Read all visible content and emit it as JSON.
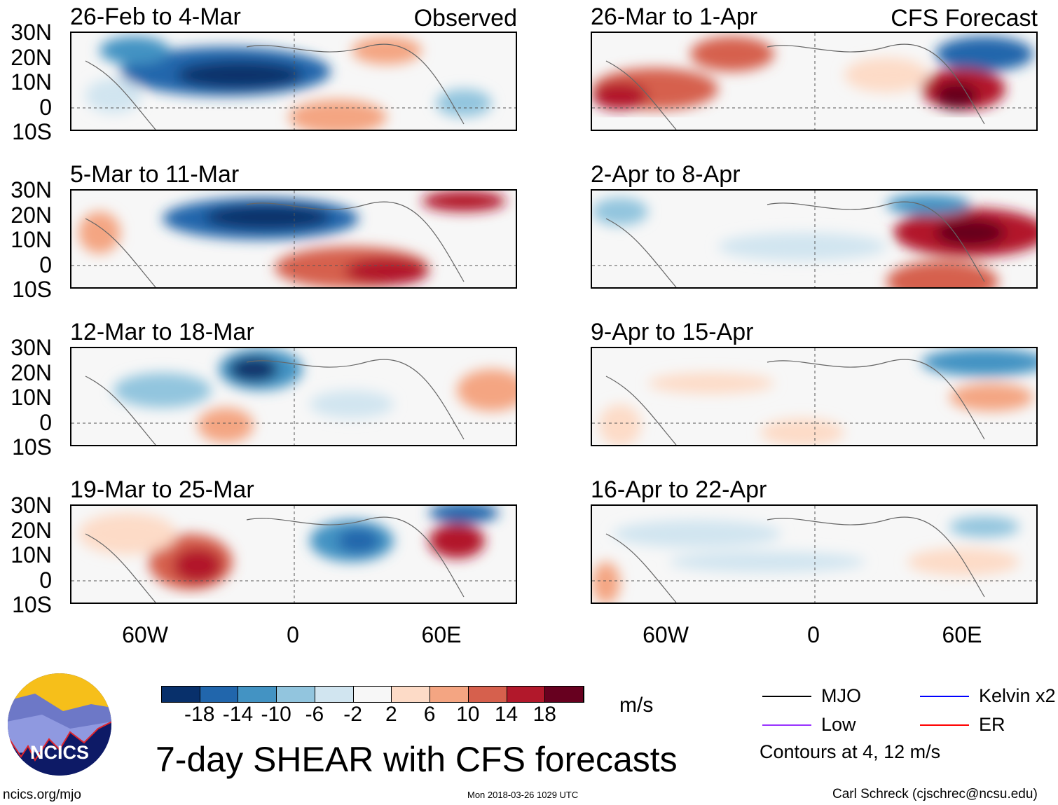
{
  "panels": [
    {
      "title": "26-Feb to 4-Mar",
      "tag": "Observed"
    },
    {
      "title": "26-Mar to 1-Apr",
      "tag": "CFS Forecast"
    },
    {
      "title": "5-Mar to 11-Mar",
      "tag": ""
    },
    {
      "title": "2-Apr to 8-Apr",
      "tag": ""
    },
    {
      "title": "12-Mar to 18-Mar",
      "tag": ""
    },
    {
      "title": "9-Apr to 15-Apr",
      "tag": ""
    },
    {
      "title": "19-Mar to 25-Mar",
      "tag": ""
    },
    {
      "title": "16-Apr to 22-Apr",
      "tag": ""
    }
  ],
  "lat_labels": [
    "30N",
    "20N",
    "10N",
    "0",
    "10S"
  ],
  "lon_labels": [
    "60W",
    "0",
    "60E"
  ],
  "chart_data": {
    "type": "heatmap",
    "title": "7-day SHEAR with CFS forecasts",
    "units": "m/s",
    "colorbar": {
      "ticks": [
        "-18",
        "-14",
        "-10",
        "-6",
        "-2",
        "2",
        "6",
        "10",
        "14",
        "18"
      ],
      "colors": [
        "#08306b",
        "#2166ac",
        "#4393c3",
        "#92c5de",
        "#d1e5f0",
        "#f7f7f7",
        "#fddbc7",
        "#f4a582",
        "#d6604d",
        "#b2182b",
        "#67001f"
      ]
    },
    "lat_range": [
      "10S",
      "30N"
    ],
    "lon_range": [
      "90W",
      "90E"
    ],
    "contours": [
      {
        "name": "MJO",
        "color": "#000000"
      },
      {
        "name": "Kelvin x2",
        "color": "#0000ff"
      },
      {
        "name": "Low",
        "color": "#9933ff"
      },
      {
        "name": "ER",
        "color": "#ff0000"
      }
    ],
    "contour_note": "Contours at 4, 12 m/s"
  },
  "footer": {
    "url": "ncics.org/mjo",
    "timestamp": "Mon 2018-03-26 1029 UTC",
    "author": "Carl Schreck (cjschrec@ncsu.edu)",
    "logo_text": "NCICS"
  }
}
